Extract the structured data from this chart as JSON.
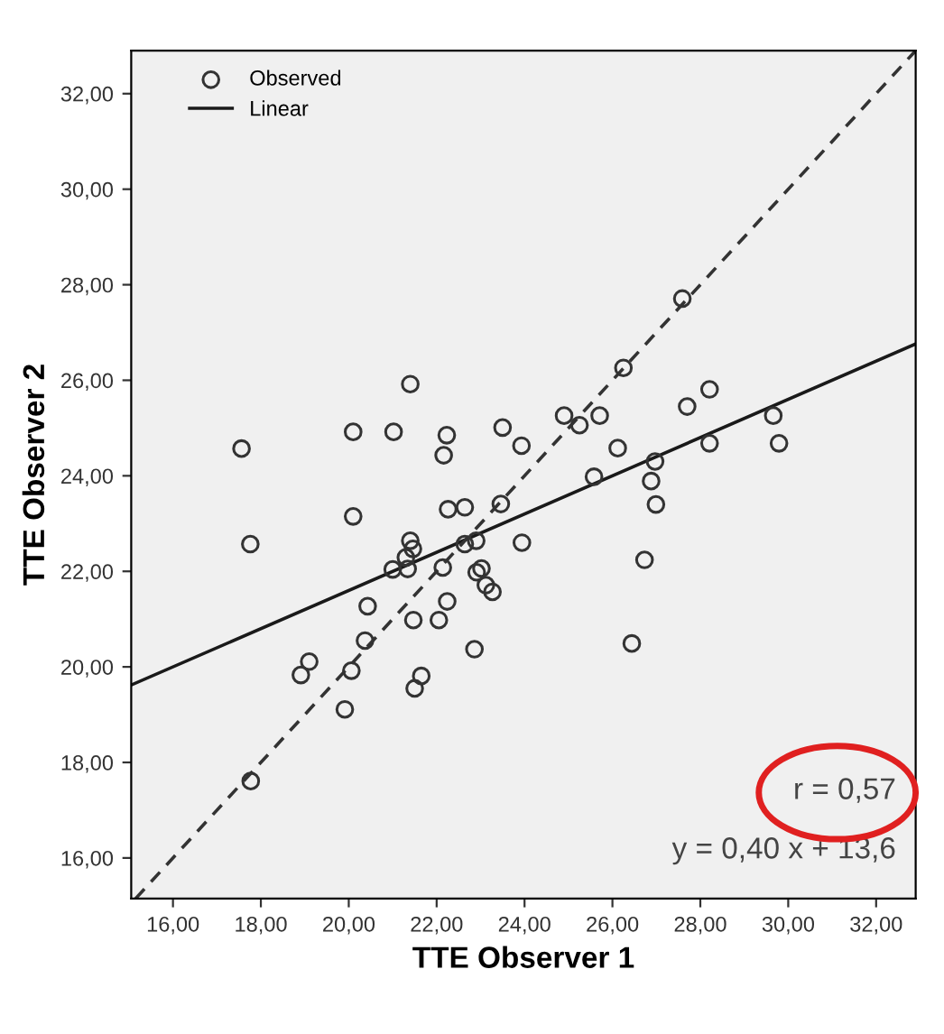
{
  "chart_data": {
    "type": "scatter",
    "xlabel": "TTE Observer 1",
    "ylabel": "TTE Observer 2",
    "xlim": [
      15.05,
      32.9
    ],
    "ylim": [
      15.15,
      32.9
    ],
    "xticks": [
      {
        "value": 16,
        "label": "16,00"
      },
      {
        "value": 18,
        "label": "18,00"
      },
      {
        "value": 20,
        "label": "20,00"
      },
      {
        "value": 22,
        "label": "22,00"
      },
      {
        "value": 24,
        "label": "24,00"
      },
      {
        "value": 26,
        "label": "26,00"
      },
      {
        "value": 28,
        "label": "28,00"
      },
      {
        "value": 30,
        "label": "30,00"
      },
      {
        "value": 32,
        "label": "32,00"
      }
    ],
    "yticks": [
      {
        "value": 16,
        "label": "16,00"
      },
      {
        "value": 18,
        "label": "18,00"
      },
      {
        "value": 20,
        "label": "20,00"
      },
      {
        "value": 22,
        "label": "22,00"
      },
      {
        "value": 24,
        "label": "24,00"
      },
      {
        "value": 26,
        "label": "26,00"
      },
      {
        "value": 28,
        "label": "28,00"
      },
      {
        "value": 30,
        "label": "30,00"
      },
      {
        "value": 32,
        "label": "32,00"
      }
    ],
    "grid": false,
    "legend": "top left",
    "marker": "circle",
    "series": [
      {
        "name": "Observed",
        "color": "#333333",
        "x": [
          27.59,
          26.25,
          21.4,
          28.21,
          27.7,
          17.56,
          20.1,
          21.02,
          22.23,
          22.16,
          23.5,
          23.93,
          24.9,
          25.25,
          25.71,
          26.12,
          29.66,
          29.79,
          28.21,
          26.97,
          25.58,
          26.88,
          26.99,
          20.1,
          22.26,
          22.64,
          23.46,
          17.76,
          21.4,
          21.46,
          21.3,
          21.0,
          21.34,
          22.14,
          22.64,
          22.9,
          23.94,
          22.91,
          23.02,
          23.12,
          23.27,
          26.73,
          20.43,
          22.24,
          21.47,
          22.05,
          20.37,
          22.86,
          26.44,
          19.1,
          18.91,
          20.06,
          21.5,
          21.65,
          19.91,
          17.77
        ],
        "values": [
          27.71,
          26.26,
          25.92,
          25.81,
          25.45,
          24.57,
          24.92,
          24.92,
          24.85,
          24.43,
          25.01,
          24.63,
          25.26,
          25.06,
          25.26,
          24.58,
          25.26,
          24.68,
          24.68,
          24.3,
          23.98,
          23.89,
          23.4,
          23.15,
          23.3,
          23.34,
          23.41,
          22.57,
          22.64,
          22.47,
          22.29,
          22.04,
          22.05,
          22.08,
          22.57,
          22.64,
          22.6,
          21.98,
          22.06,
          21.71,
          21.57,
          22.24,
          21.27,
          21.37,
          20.98,
          20.98,
          20.55,
          20.37,
          20.49,
          20.11,
          19.83,
          19.92,
          19.55,
          19.81,
          19.11,
          17.61
        ]
      },
      {
        "name": "Linear",
        "type": "line",
        "color": "#1a1a1a",
        "line_style": "solid",
        "marker": "none",
        "x": [
          15.05,
          32.9
        ],
        "values": [
          19.62,
          26.76
        ]
      },
      {
        "type": "line",
        "color": "#333333",
        "line_style": "dashed",
        "marker": "none",
        "x": [
          15.15,
          32.9
        ],
        "values": [
          15.15,
          32.9
        ]
      }
    ],
    "annotations": [
      {
        "text": "r = 0,57"
      },
      {
        "text": "y = 0,40 x + 13,6"
      }
    ]
  }
}
